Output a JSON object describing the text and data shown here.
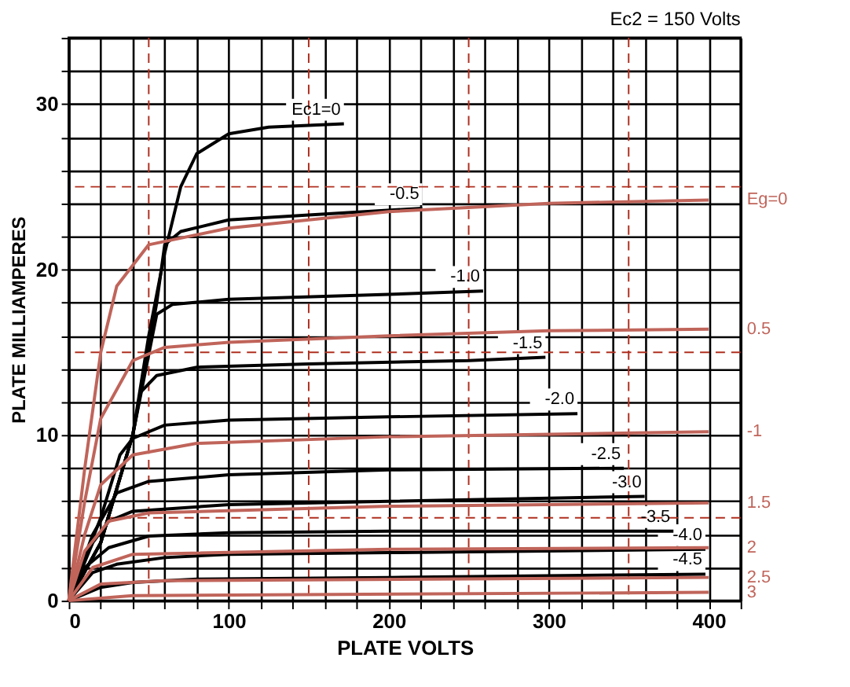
{
  "chart_data": {
    "type": "line",
    "xlabel": "PLATE VOLTS",
    "ylabel": "PLATE MILLIAMPERES",
    "annotations": [
      "Ec2 = 150 Volts"
    ],
    "xlim": [
      0,
      420
    ],
    "ylim": [
      0,
      34
    ],
    "xticks": [
      0,
      {
        "value": 20,
        "label": null
      },
      {
        "value": 40,
        "label": null
      },
      {
        "value": 60,
        "label": null
      },
      {
        "value": 80,
        "label": null
      },
      100,
      {
        "value": 120,
        "label": null
      },
      {
        "value": 140,
        "label": null
      },
      {
        "value": 160,
        "label": null
      },
      {
        "value": 180,
        "label": null
      },
      200,
      {
        "value": 220,
        "label": null
      },
      {
        "value": 240,
        "label": null
      },
      {
        "value": 260,
        "label": null
      },
      {
        "value": 280,
        "label": null
      },
      300,
      {
        "value": 320,
        "label": null
      },
      {
        "value": 340,
        "label": null
      },
      {
        "value": 360,
        "label": null
      },
      {
        "value": 380,
        "label": null
      },
      400,
      {
        "value": 420,
        "label": null
      }
    ],
    "yticks": [
      0,
      {
        "value": 2,
        "label": null
      },
      {
        "value": 4,
        "label": null
      },
      {
        "value": 6,
        "label": null
      },
      {
        "value": 8,
        "label": null
      },
      10,
      {
        "value": 12,
        "label": null
      },
      {
        "value": 14,
        "label": null
      },
      {
        "value": 16,
        "label": null
      },
      {
        "value": 18,
        "label": null
      },
      20,
      {
        "value": 22,
        "label": null
      },
      {
        "value": 24,
        "label": null
      },
      {
        "value": 26,
        "label": null
      },
      {
        "value": 28,
        "label": null
      },
      30,
      {
        "value": 32,
        "label": null
      },
      {
        "value": 34,
        "label": null
      }
    ],
    "grid": true,
    "legend": false,
    "marker": "none",
    "line_style": "solid",
    "ref_lines": [
      {
        "axis": "x",
        "value": 50,
        "color": "#b03020",
        "line_style": "dashed"
      },
      {
        "axis": "x",
        "value": 150,
        "color": "#b03020",
        "line_style": "dashed"
      },
      {
        "axis": "x",
        "value": 250,
        "color": "#b03020",
        "line_style": "dashed"
      },
      {
        "axis": "x",
        "value": 350,
        "color": "#b03020",
        "line_style": "dashed"
      },
      {
        "axis": "y",
        "value": 5,
        "color": "#b03020",
        "line_style": "dashed"
      },
      {
        "axis": "y",
        "value": 15,
        "color": "#b03020",
        "line_style": "dashed"
      },
      {
        "axis": "y",
        "value": 25,
        "color": "#b03020",
        "line_style": "dashed"
      }
    ],
    "series": [
      {
        "name": "Ec1=0",
        "color": "#000000",
        "x": [
          0,
          20,
          40,
          50,
          60,
          70,
          80,
          100,
          125,
          172
        ],
        "values": [
          0,
          3.5,
          10,
          16,
          21,
          25,
          27,
          28.2,
          28.6,
          28.8
        ]
      },
      {
        "name": "-0.5",
        "color": "#000000",
        "x": [
          0,
          20,
          40,
          55,
          60,
          70,
          100,
          150,
          221
        ],
        "values": [
          0,
          3.5,
          10,
          18,
          21.5,
          22.3,
          23,
          23.3,
          23.7
        ]
      },
      {
        "name": "-1.0",
        "color": "#000000",
        "x": [
          0,
          20,
          40,
          55,
          65,
          100,
          200,
          259
        ],
        "values": [
          0,
          3.5,
          10,
          17.3,
          17.9,
          18.2,
          18.5,
          18.7
        ]
      },
      {
        "name": "-1.5",
        "color": "#000000",
        "x": [
          0,
          20,
          40,
          45,
          55,
          80,
          150,
          250,
          298
        ],
        "values": [
          0,
          3.5,
          10,
          12.6,
          13.6,
          14.1,
          14.3,
          14.5,
          14.7
        ]
      },
      {
        "name": "-2.0",
        "color": "#000000",
        "x": [
          0,
          20,
          32,
          40,
          60,
          100,
          200,
          318
        ],
        "values": [
          0,
          5,
          8.8,
          9.8,
          10.6,
          10.9,
          11.1,
          11.3
        ]
      },
      {
        "name": "-2.5",
        "color": "#000000",
        "x": [
          0,
          15,
          30,
          50,
          100,
          200,
          347
        ],
        "values": [
          0,
          4,
          6.5,
          7.2,
          7.6,
          7.9,
          8
        ]
      },
      {
        "name": "-3.0",
        "color": "#000000",
        "x": [
          0,
          15,
          25,
          40,
          100,
          200,
          360
        ],
        "values": [
          0,
          3.5,
          4.8,
          5.4,
          5.8,
          6,
          6.3
        ]
      },
      {
        "name": "-3.5",
        "color": "#000000",
        "x": [
          0,
          10,
          25,
          50,
          100,
          200,
          378
        ],
        "values": [
          0,
          2,
          3.2,
          3.9,
          4.1,
          4.2,
          4.2
        ]
      },
      {
        "name": "-4.0",
        "color": "#000000",
        "x": [
          0,
          15,
          30,
          60,
          100,
          200,
          398
        ],
        "values": [
          0,
          1.7,
          2.2,
          2.6,
          2.8,
          2.9,
          3.1
        ]
      },
      {
        "name": "-4.5",
        "color": "#000000",
        "x": [
          0,
          20,
          40,
          80,
          200,
          398
        ],
        "values": [
          0,
          0.8,
          1.1,
          1.3,
          1.4,
          1.6
        ]
      },
      {
        "name": "Eg=0",
        "color": "#c0645a",
        "x": [
          0,
          10,
          20,
          30,
          50,
          100,
          200,
          300,
          400
        ],
        "values": [
          0,
          8,
          15,
          19,
          21.5,
          22.5,
          23.5,
          24,
          24.2
        ]
      },
      {
        "name": "0.5",
        "color": "#c0645a",
        "x": [
          0,
          10,
          20,
          40,
          60,
          100,
          200,
          300,
          400
        ],
        "values": [
          0,
          6,
          11,
          14.5,
          15.3,
          15.6,
          16,
          16.3,
          16.4
        ]
      },
      {
        "name": "-1",
        "color": "#c0645a",
        "x": [
          0,
          10,
          20,
          40,
          80,
          200,
          400
        ],
        "values": [
          0,
          4,
          7,
          8.8,
          9.5,
          9.9,
          10.2
        ]
      },
      {
        "name": "1.5",
        "color": "#c0645a",
        "x": [
          0,
          10,
          25,
          50,
          200,
          400
        ],
        "values": [
          0,
          3,
          4.8,
          5.3,
          5.7,
          5.9
        ]
      },
      {
        "name": "2",
        "color": "#c0645a",
        "x": [
          0,
          15,
          40,
          200,
          400
        ],
        "values": [
          0,
          2,
          2.8,
          3.1,
          3.2
        ]
      },
      {
        "name": "2.5",
        "color": "#c0645a",
        "x": [
          0,
          20,
          60,
          400
        ],
        "values": [
          0,
          1,
          1.2,
          1.4
        ]
      },
      {
        "name": "3",
        "color": "#c0645a",
        "x": [
          0,
          40,
          400
        ],
        "values": [
          0,
          0.3,
          0.5
        ]
      }
    ]
  }
}
